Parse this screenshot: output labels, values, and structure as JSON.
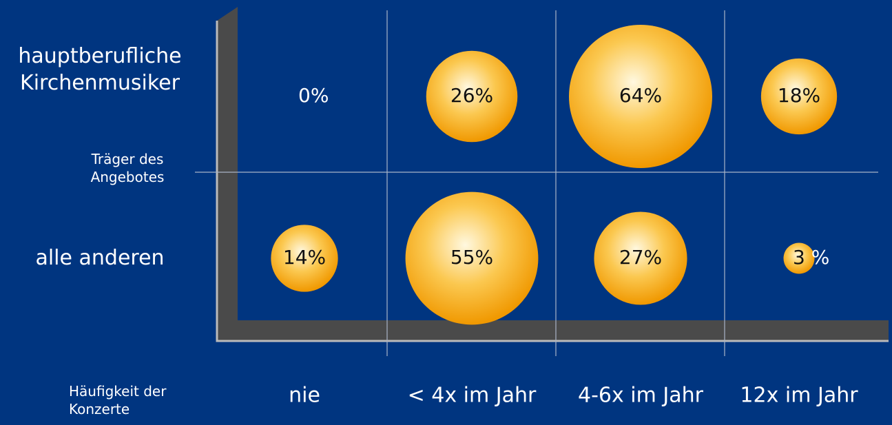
{
  "chart_data": {
    "type": "bubble",
    "x_label": "Häufigkeit der Konzerte",
    "y_label": "Träger des Angebotes",
    "categories": [
      "nie",
      "< 4x im Jahr",
      "4-6x im Jahr",
      "12x im Jahr"
    ],
    "series": [
      {
        "name": "hauptberufliche Kirchenmusiker",
        "color": "#f0a000",
        "values": [
          0,
          26,
          64,
          18
        ],
        "value_labels": [
          "0%",
          "26%",
          "64%",
          "18%"
        ]
      },
      {
        "name": "alle anderen",
        "color": "#f0a000",
        "values": [
          14,
          55,
          27,
          3
        ],
        "value_labels": [
          "14%",
          "55%",
          "27%",
          "3 %"
        ]
      }
    ]
  }
}
